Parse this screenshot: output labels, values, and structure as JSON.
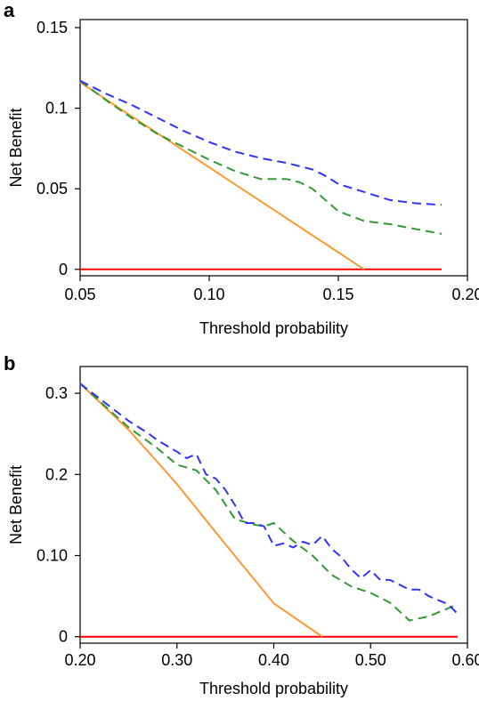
{
  "chart_data": [
    {
      "panel_label": "a",
      "type": "line",
      "xlabel": "Threshold probability",
      "ylabel": "Net Benefit",
      "xlim": [
        0.05,
        0.2
      ],
      "ylim": [
        -0.004,
        0.155
      ],
      "xticks": [
        0.05,
        0.1,
        0.15,
        0.2
      ],
      "xtick_labels": [
        "0.05",
        "0.10",
        "0.15",
        "0.20"
      ],
      "yticks": [
        0,
        0.05,
        0.1,
        0.15
      ],
      "ytick_labels": [
        "0",
        "0.05",
        "0.1",
        "0.15"
      ],
      "grid": false,
      "legend": "none",
      "series": [
        {
          "color": "#ff0000",
          "dash": "solid",
          "x": [
            0.05,
            0.19
          ],
          "y": [
            0,
            0
          ]
        },
        {
          "color": "#ff9933",
          "dash": "solid",
          "x": [
            0.05,
            0.16
          ],
          "y": [
            0.116,
            0
          ]
        },
        {
          "color": "#339933",
          "dash": "dashed",
          "x": [
            0.05,
            0.06,
            0.07,
            0.08,
            0.09,
            0.1,
            0.11,
            0.12,
            0.13,
            0.135,
            0.14,
            0.15,
            0.16,
            0.17,
            0.18,
            0.19
          ],
          "y": [
            0.117,
            0.105,
            0.094,
            0.084,
            0.076,
            0.068,
            0.061,
            0.056,
            0.056,
            0.054,
            0.05,
            0.036,
            0.03,
            0.028,
            0.025,
            0.022
          ]
        },
        {
          "color": "#3333ff",
          "dash": "dashed",
          "x": [
            0.05,
            0.06,
            0.07,
            0.08,
            0.09,
            0.1,
            0.11,
            0.12,
            0.13,
            0.14,
            0.145,
            0.15,
            0.16,
            0.17,
            0.18,
            0.19
          ],
          "y": [
            0.117,
            0.109,
            0.102,
            0.094,
            0.086,
            0.079,
            0.073,
            0.069,
            0.066,
            0.062,
            0.058,
            0.053,
            0.048,
            0.043,
            0.041,
            0.04
          ]
        }
      ]
    },
    {
      "panel_label": "b",
      "type": "line",
      "xlabel": "Threshold probability",
      "ylabel": "Net Benefit",
      "xlim": [
        0.2,
        0.6
      ],
      "ylim": [
        -0.008,
        0.333
      ],
      "xticks": [
        0.2,
        0.3,
        0.4,
        0.5,
        0.6
      ],
      "xtick_labels": [
        "0.20",
        "0.30",
        "0.40",
        "0.50",
        "0.60"
      ],
      "yticks": [
        0,
        0.1,
        0.2,
        0.3
      ],
      "ytick_labels": [
        "0",
        "0.10",
        "0.2",
        "0.3"
      ],
      "grid": false,
      "legend": "none",
      "series": [
        {
          "color": "#ff0000",
          "dash": "solid",
          "x": [
            0.2,
            0.59
          ],
          "y": [
            0,
            0
          ]
        },
        {
          "color": "#ff9933",
          "dash": "solid",
          "x": [
            0.2,
            0.25,
            0.3,
            0.35,
            0.4,
            0.45
          ],
          "y": [
            0.312,
            0.255,
            0.188,
            0.114,
            0.041,
            0
          ]
        },
        {
          "color": "#339933",
          "dash": "dashed",
          "x": [
            0.2,
            0.25,
            0.28,
            0.3,
            0.32,
            0.34,
            0.36,
            0.38,
            0.39,
            0.4,
            0.42,
            0.44,
            0.46,
            0.48,
            0.5,
            0.52,
            0.54,
            0.56,
            0.58,
            0.59
          ],
          "y": [
            0.312,
            0.258,
            0.232,
            0.212,
            0.205,
            0.181,
            0.145,
            0.138,
            0.136,
            0.14,
            0.118,
            0.1,
            0.076,
            0.062,
            0.054,
            0.042,
            0.02,
            0.025,
            0.035,
            0.04
          ]
        },
        {
          "color": "#3333ff",
          "dash": "dashed",
          "x": [
            0.2,
            0.25,
            0.27,
            0.28,
            0.3,
            0.31,
            0.32,
            0.33,
            0.34,
            0.35,
            0.36,
            0.37,
            0.38,
            0.39,
            0.4,
            0.41,
            0.42,
            0.43,
            0.44,
            0.45,
            0.46,
            0.47,
            0.48,
            0.49,
            0.5,
            0.51,
            0.52,
            0.53,
            0.54,
            0.55,
            0.56,
            0.57,
            0.58,
            0.59
          ],
          "y": [
            0.312,
            0.266,
            0.251,
            0.242,
            0.228,
            0.22,
            0.225,
            0.2,
            0.195,
            0.181,
            0.162,
            0.14,
            0.14,
            0.136,
            0.112,
            0.115,
            0.11,
            0.117,
            0.113,
            0.124,
            0.108,
            0.098,
            0.083,
            0.072,
            0.082,
            0.07,
            0.07,
            0.064,
            0.058,
            0.058,
            0.05,
            0.045,
            0.04,
            0.028
          ]
        }
      ]
    }
  ]
}
